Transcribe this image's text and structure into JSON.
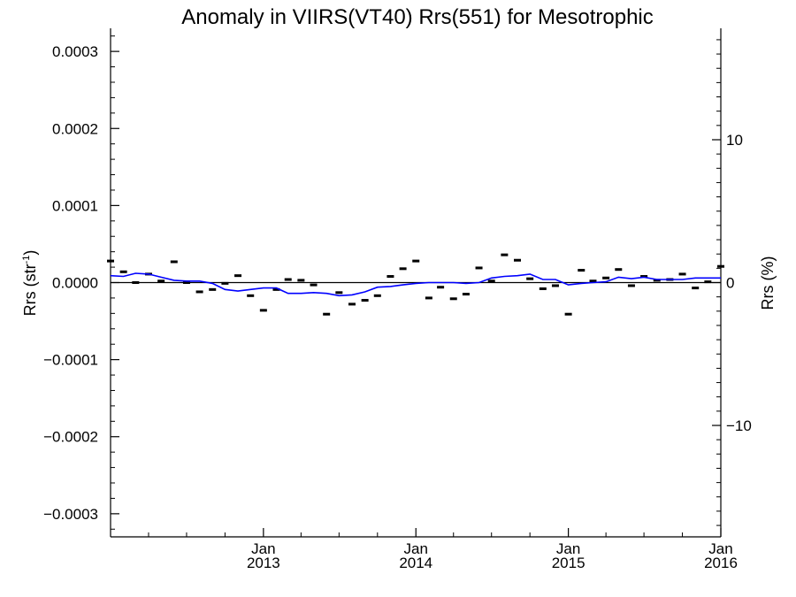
{
  "chart_data": {
    "type": "line",
    "title": "Anomaly in VIIRS(VT40) Rrs(551) for Mesotrophic",
    "ylabel": "Rrs (str",
    "ylabel_sup": "-1",
    "ylabel_close": ")",
    "y2label": "Rrs (%)",
    "xlim": [
      "2012-01-01",
      "2016-01-01"
    ],
    "ylim": [
      -0.00033,
      0.00033
    ],
    "y2lim": [
      -17.8,
      17.8
    ],
    "yticks": [
      {
        "v": 0.0003,
        "label": "0.0003"
      },
      {
        "v": 0.0002,
        "label": "0.0002"
      },
      {
        "v": 0.0001,
        "label": "0.0001"
      },
      {
        "v": 0.0,
        "label": "0.0000"
      },
      {
        "v": -0.0001,
        "label": "−0.0001"
      },
      {
        "v": -0.0002,
        "label": "−0.0002"
      },
      {
        "v": -0.0003,
        "label": "−0.0003"
      }
    ],
    "y2ticks": [
      {
        "v": 10,
        "label": "10"
      },
      {
        "v": 0,
        "label": "0"
      },
      {
        "v": -10,
        "label": "−10"
      }
    ],
    "xticks": [
      {
        "date": "2013-01-01",
        "month": "Jan",
        "year": "2013"
      },
      {
        "date": "2014-01-01",
        "month": "Jan",
        "year": "2014"
      },
      {
        "date": "2015-01-01",
        "month": "Jan",
        "year": "2015"
      },
      {
        "date": "2016-01-01",
        "month": "Jan",
        "year": "2016"
      }
    ],
    "zero_line": true,
    "grid": false,
    "series": [
      {
        "kind": "points",
        "color": "#000000",
        "x": [
          "2012-01-01",
          "2012-02-01",
          "2012-03-01",
          "2012-04-01",
          "2012-05-01",
          "2012-06-01",
          "2012-07-01",
          "2012-08-01",
          "2012-09-01",
          "2012-10-01",
          "2012-11-01",
          "2012-12-01",
          "2013-01-01",
          "2013-02-01",
          "2013-03-01",
          "2013-04-01",
          "2013-05-01",
          "2013-06-01",
          "2013-07-01",
          "2013-08-01",
          "2013-09-01",
          "2013-10-01",
          "2013-11-01",
          "2013-12-01",
          "2014-01-01",
          "2014-02-01",
          "2014-03-01",
          "2014-04-01",
          "2014-05-01",
          "2014-06-01",
          "2014-07-01",
          "2014-08-01",
          "2014-09-01",
          "2014-10-01",
          "2014-11-01",
          "2014-12-01",
          "2015-01-01",
          "2015-02-01",
          "2015-03-01",
          "2015-04-01",
          "2015-05-01",
          "2015-06-01",
          "2015-07-01",
          "2015-08-01",
          "2015-09-01",
          "2015-10-01",
          "2015-11-01",
          "2015-12-01",
          "2016-01-01"
        ],
        "values": [
          2.8e-05,
          1.4e-05,
          0.0,
          1.1e-05,
          2e-06,
          2.7e-05,
          0.0,
          -1.2e-05,
          -9e-06,
          -1e-06,
          9e-06,
          -1.7e-05,
          -3.6e-05,
          -9e-06,
          4e-06,
          3e-06,
          -3e-06,
          -4.1e-05,
          -1.3e-05,
          -2.8e-05,
          -2.3e-05,
          -1.7e-05,
          8e-06,
          1.8e-05,
          2.8e-05,
          -2e-05,
          -6e-06,
          -2.1e-05,
          -1.5e-05,
          1.9e-05,
          2e-06,
          3.6e-05,
          2.9e-05,
          5e-06,
          -8e-06,
          -4e-06,
          -4.1e-05,
          1.6e-05,
          2e-06,
          6e-06,
          1.7e-05,
          -4e-06,
          8e-06,
          3e-06,
          4e-06,
          1.1e-05,
          -7e-06,
          1e-06,
          2.1e-05
        ]
      },
      {
        "kind": "line",
        "color": "#0000ff",
        "x": [
          "2012-01-01",
          "2012-02-01",
          "2012-03-01",
          "2012-04-01",
          "2012-05-01",
          "2012-06-01",
          "2012-07-01",
          "2012-08-01",
          "2012-09-01",
          "2012-10-01",
          "2012-11-01",
          "2012-12-01",
          "2013-01-01",
          "2013-02-01",
          "2013-03-01",
          "2013-04-01",
          "2013-05-01",
          "2013-06-01",
          "2013-07-01",
          "2013-08-01",
          "2013-09-01",
          "2013-10-01",
          "2013-11-01",
          "2013-12-01",
          "2014-01-01",
          "2014-02-01",
          "2014-03-01",
          "2014-04-01",
          "2014-05-01",
          "2014-06-01",
          "2014-07-01",
          "2014-08-01",
          "2014-09-01",
          "2014-10-01",
          "2014-11-01",
          "2014-12-01",
          "2015-01-01",
          "2015-02-01",
          "2015-03-01",
          "2015-04-01",
          "2015-05-01",
          "2015-06-01",
          "2015-07-01",
          "2015-08-01",
          "2015-09-01",
          "2015-10-01",
          "2015-11-01",
          "2015-12-01",
          "2016-01-01"
        ],
        "values": [
          9e-06,
          8e-06,
          1.2e-05,
          1.1e-05,
          7e-06,
          3e-06,
          2e-06,
          2e-06,
          -1e-06,
          -9e-06,
          -1.1e-05,
          -9e-06,
          -7e-06,
          -7e-06,
          -1.4e-05,
          -1.4e-05,
          -1.3e-05,
          -1.4e-05,
          -1.7e-05,
          -1.6e-05,
          -1.2e-05,
          -6e-06,
          -5e-06,
          -3e-06,
          -1e-06,
          0.0,
          0.0,
          0.0,
          -1e-06,
          0.0,
          6e-06,
          8e-06,
          9e-06,
          1.1e-05,
          4e-06,
          4e-06,
          -3e-06,
          -1e-06,
          0.0,
          1e-06,
          7e-06,
          5e-06,
          7e-06,
          4e-06,
          4e-06,
          4e-06,
          6e-06,
          6e-06,
          6e-06
        ]
      }
    ]
  }
}
